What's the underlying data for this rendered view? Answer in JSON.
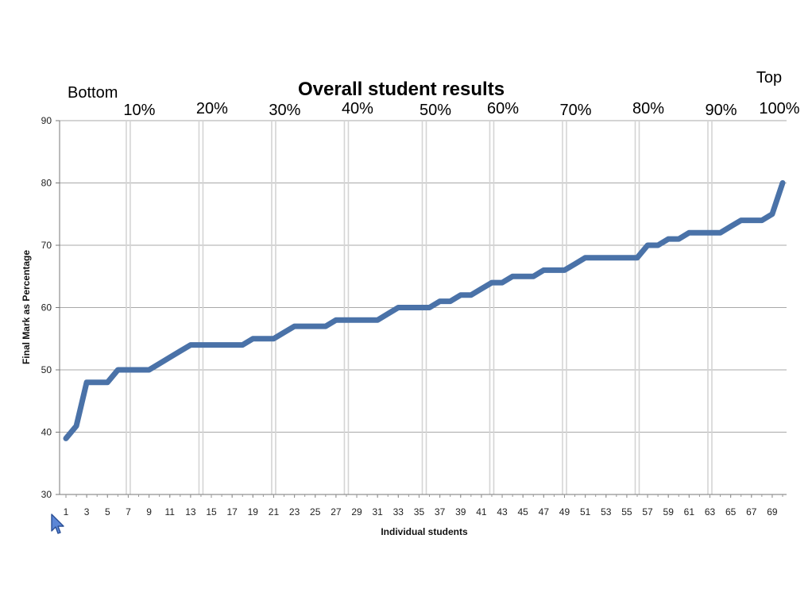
{
  "chart_data": {
    "type": "line",
    "title": "Overall student results",
    "xlabel": "Individual students",
    "ylabel": "Final Mark as Percentage",
    "ylim": [
      30,
      90
    ],
    "yticks": [
      30,
      40,
      50,
      60,
      70,
      80,
      90
    ],
    "xlim": [
      1,
      70
    ],
    "xticks": [
      "1",
      "3",
      "5",
      "7",
      "9",
      "11",
      "13",
      "15",
      "17",
      "19",
      "21",
      "23",
      "25",
      "27",
      "29",
      "31",
      "33",
      "35",
      "37",
      "39",
      "41",
      "43",
      "45",
      "47",
      "49",
      "51",
      "53",
      "55",
      "57",
      "59",
      "61",
      "63",
      "65",
      "67",
      "69"
    ],
    "grid": "horizontal",
    "line_color": "#4a72a8",
    "series": [
      {
        "x": [
          1,
          2,
          3,
          4,
          5,
          6,
          7,
          8,
          9,
          10,
          11,
          12,
          13,
          14,
          15,
          16,
          17,
          18,
          19,
          20,
          21,
          22,
          23,
          24,
          25,
          26,
          27,
          28,
          29,
          30,
          31,
          32,
          33,
          34,
          35,
          36,
          37,
          38,
          39,
          40,
          41,
          42,
          43,
          44,
          45,
          46,
          47,
          48,
          49,
          50,
          51,
          52,
          53,
          54,
          55,
          56,
          57,
          58,
          59,
          60,
          61,
          62,
          63,
          64,
          65,
          66,
          67,
          68,
          69,
          70
        ],
        "values": [
          39,
          41,
          48,
          48,
          48,
          50,
          50,
          50,
          50,
          51,
          52,
          53,
          54,
          54,
          54,
          54,
          54,
          54,
          55,
          55,
          55,
          56,
          57,
          57,
          57,
          57,
          58,
          58,
          58,
          58,
          58,
          59,
          60,
          60,
          60,
          60,
          61,
          61,
          62,
          62,
          63,
          64,
          64,
          65,
          65,
          65,
          66,
          66,
          66,
          67,
          68,
          68,
          68,
          68,
          68,
          68,
          70,
          70,
          71,
          71,
          72,
          72,
          72,
          72,
          73,
          74,
          74,
          74,
          75,
          80
        ]
      }
    ],
    "annotations": {
      "bottom_label": "Bottom",
      "top_label": "Top",
      "percentile_markers": [
        {
          "label": "10%",
          "x": 7
        },
        {
          "label": "20%",
          "x": 14
        },
        {
          "label": "30%",
          "x": 21
        },
        {
          "label": "40%",
          "x": 28
        },
        {
          "label": "50%",
          "x": 35.5
        },
        {
          "label": "60%",
          "x": 42
        },
        {
          "label": "70%",
          "x": 49
        },
        {
          "label": "80%",
          "x": 56
        },
        {
          "label": "90%",
          "x": 63
        },
        {
          "label": "100%",
          "x": 70
        }
      ]
    }
  }
}
